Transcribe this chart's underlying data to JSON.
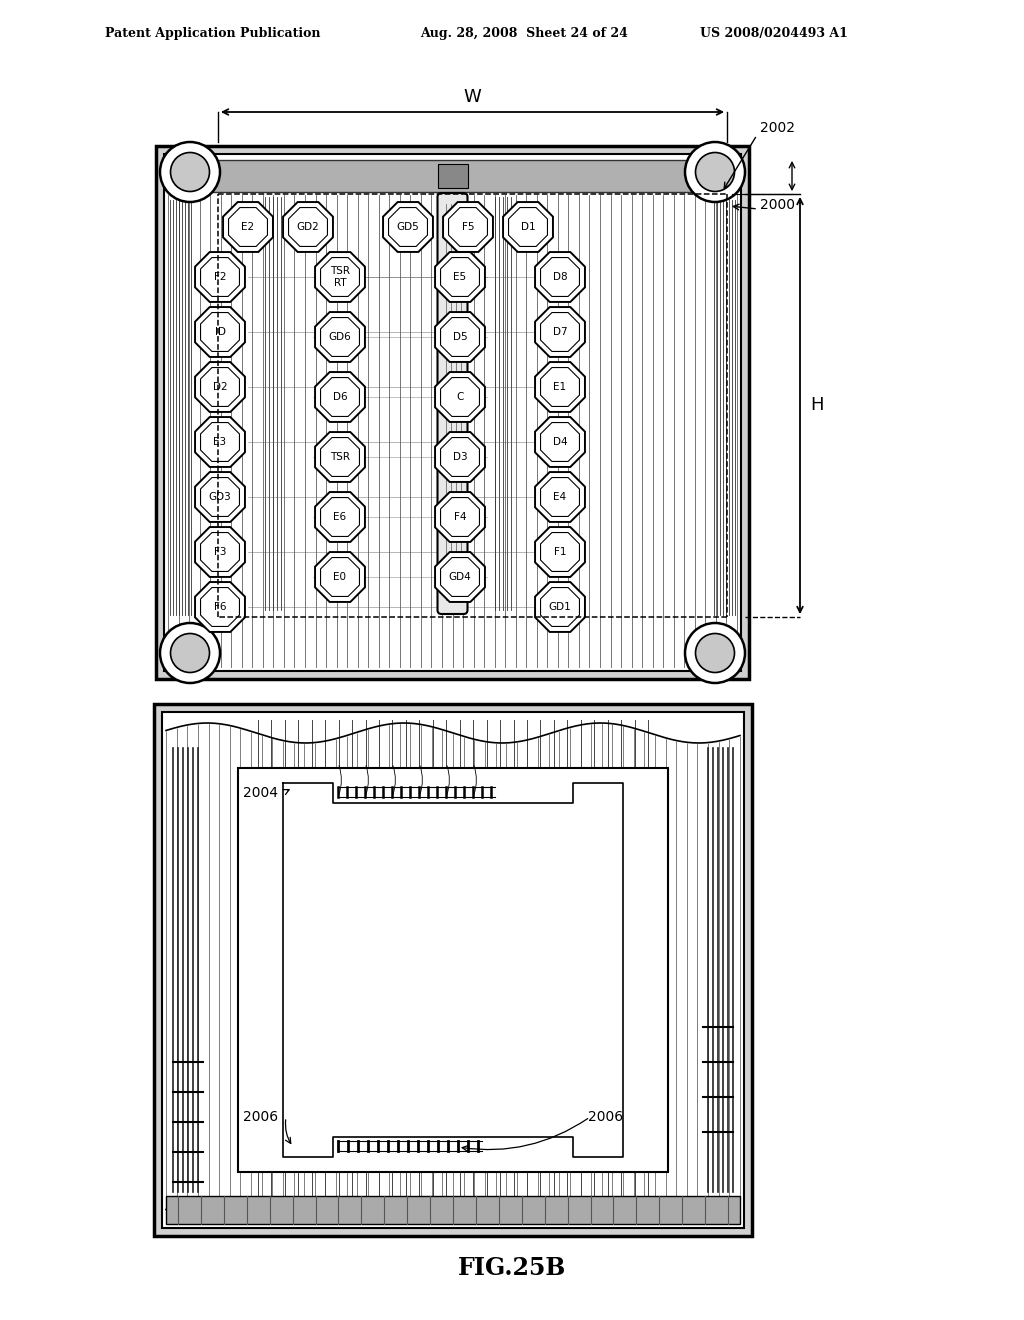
{
  "bg_color": "#ffffff",
  "header_left": "Patent Application Publication",
  "header_mid": "Aug. 28, 2008  Sheet 24 of 24",
  "header_right": "US 2008/0204493 A1",
  "fig_label": "FIG.25B",
  "top_pads": [
    [
      248,
      1093,
      "E2"
    ],
    [
      308,
      1093,
      "GD2"
    ],
    [
      408,
      1093,
      "GD5"
    ],
    [
      468,
      1093,
      "F5"
    ],
    [
      528,
      1093,
      "D1"
    ]
  ],
  "col1_pads": [
    [
      220,
      1043,
      "F2"
    ],
    [
      220,
      988,
      "ID"
    ],
    [
      220,
      933,
      "D2"
    ],
    [
      220,
      878,
      "E3"
    ],
    [
      220,
      823,
      "GD3"
    ],
    [
      220,
      768,
      "F3"
    ],
    [
      220,
      713,
      "F6"
    ]
  ],
  "col2_pads": [
    [
      340,
      1043,
      "TSR\nRT"
    ],
    [
      340,
      983,
      "GD6"
    ],
    [
      340,
      923,
      "D6"
    ],
    [
      340,
      863,
      "TSR"
    ],
    [
      340,
      803,
      "E6"
    ],
    [
      340,
      743,
      "E0"
    ]
  ],
  "col3_pads": [
    [
      460,
      1043,
      "E5"
    ],
    [
      460,
      983,
      "D5"
    ],
    [
      460,
      923,
      "C"
    ],
    [
      460,
      863,
      "D3"
    ],
    [
      460,
      803,
      "F4"
    ],
    [
      460,
      743,
      "GD4"
    ]
  ],
  "col4_pads": [
    [
      560,
      1043,
      "D8"
    ],
    [
      560,
      988,
      "D7"
    ],
    [
      560,
      933,
      "E1"
    ],
    [
      560,
      878,
      "D4"
    ],
    [
      560,
      823,
      "E4"
    ],
    [
      560,
      768,
      "F1"
    ],
    [
      560,
      713,
      "GD1"
    ]
  ],
  "pad_r": 27
}
